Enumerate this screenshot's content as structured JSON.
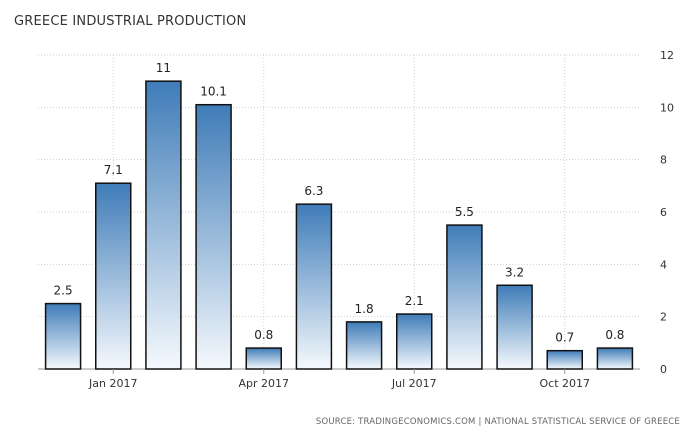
{
  "chart_data": {
    "type": "bar",
    "title": "GREECE INDUSTRIAL PRODUCTION",
    "xlabel": "",
    "ylabel": "",
    "x_tick_labels": [
      "Jan 2017",
      "Apr 2017",
      "Jul 2017",
      "Oct 2017"
    ],
    "x_tick_positions": [
      1,
      4,
      7,
      10
    ],
    "values": [
      2.5,
      7.1,
      11,
      10.1,
      0.8,
      6.3,
      1.8,
      2.1,
      5.5,
      3.2,
      0.7,
      0.8
    ],
    "data_labels": [
      "2.5",
      "7.1",
      "11",
      "10.1",
      "0.8",
      "6.3",
      "1.8",
      "2.1",
      "5.5",
      "3.2",
      "0.7",
      "0.8"
    ],
    "ylim": [
      0,
      12
    ],
    "yticks": [
      0,
      2,
      4,
      6,
      8,
      10,
      12
    ],
    "y_axis_side": "right",
    "grid": true,
    "legend": "none",
    "bar_color_top": "#3f7cb8",
    "bar_color_bottom": "#f5f9fd",
    "bar_stroke": "#111111"
  },
  "footer": {
    "source": "SOURCE: TRADINGECONOMICS.COM | NATIONAL STATISTICAL SERVICE OF GREECE"
  }
}
